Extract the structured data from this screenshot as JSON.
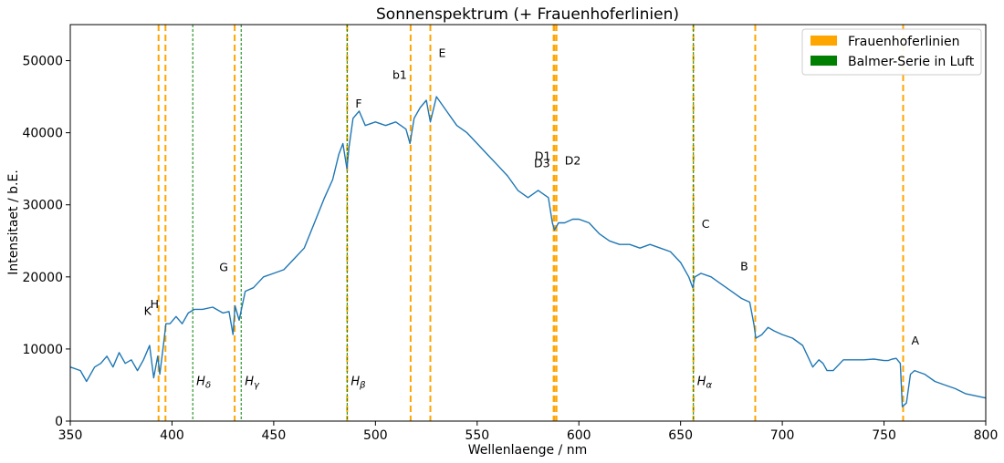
{
  "chart_data": {
    "type": "line",
    "title": "Sonnenspektrum (+ Frauenhoferlinien)",
    "xlabel": "Wellenlaenge / nm",
    "ylabel": "Intensitaet / b.E.",
    "xlim": [
      350,
      800
    ],
    "ylim": [
      0,
      55000
    ],
    "xticks": [
      350,
      400,
      450,
      500,
      550,
      600,
      650,
      700,
      750,
      800
    ],
    "yticks": [
      0,
      10000,
      20000,
      30000,
      40000,
      50000
    ],
    "grid": false,
    "legend": {
      "placement": "top-right",
      "entries": [
        {
          "label": "Frauenhoferlinien",
          "color": "#ffa500"
        },
        {
          "label": "Balmer-Serie in Luft",
          "color": "#008000"
        }
      ]
    },
    "spectrum_color": "#1f77b4",
    "spectrum": {
      "x": [
        350,
        355,
        358,
        362,
        365,
        368,
        371,
        374,
        377,
        380,
        383,
        386,
        389,
        391,
        393,
        394,
        396,
        397,
        399,
        402,
        405,
        408,
        411,
        415,
        420,
        425,
        428,
        430,
        431,
        433,
        436,
        440,
        445,
        450,
        455,
        460,
        465,
        470,
        475,
        479,
        482,
        484,
        486,
        487,
        489,
        492,
        495,
        500,
        505,
        510,
        515,
        517,
        519,
        522,
        525,
        527,
        530,
        535,
        540,
        545,
        550,
        555,
        560,
        565,
        570,
        575,
        580,
        585,
        587,
        588,
        589,
        590,
        593,
        597,
        600,
        605,
        610,
        615,
        620,
        625,
        630,
        635,
        640,
        645,
        650,
        654,
        656,
        657,
        660,
        665,
        670,
        675,
        680,
        684,
        686,
        687,
        690,
        693,
        696,
        700,
        705,
        710,
        715,
        718,
        720,
        722,
        725,
        730,
        735,
        740,
        745,
        750,
        752,
        754,
        756,
        758,
        759,
        761,
        763,
        765,
        770,
        775,
        780,
        785,
        790,
        795,
        800
      ],
      "y": [
        7500,
        7000,
        5500,
        7500,
        8000,
        9000,
        7500,
        9500,
        8000,
        8500,
        7000,
        8500,
        10500,
        6000,
        9000,
        6500,
        11000,
        13500,
        13500,
        14500,
        13500,
        15000,
        15500,
        15500,
        15800,
        15000,
        15200,
        12000,
        16000,
        14000,
        18000,
        18500,
        20000,
        20500,
        21000,
        22500,
        24000,
        27500,
        31000,
        33500,
        37000,
        38500,
        35000,
        38000,
        42000,
        43000,
        41000,
        41500,
        41000,
        41500,
        40500,
        38500,
        42000,
        43500,
        44500,
        41500,
        45000,
        43000,
        41000,
        40000,
        38500,
        37000,
        35500,
        34000,
        32000,
        31000,
        32000,
        31000,
        27500,
        26500,
        27000,
        27500,
        27500,
        28000,
        28000,
        27500,
        26000,
        25000,
        24500,
        24500,
        24000,
        24500,
        24000,
        23500,
        22000,
        20000,
        18500,
        20000,
        20500,
        20000,
        19000,
        18000,
        17000,
        16500,
        13500,
        11500,
        12000,
        13000,
        12500,
        12000,
        11500,
        10500,
        7500,
        8500,
        8000,
        7000,
        7000,
        8500,
        8500,
        8500,
        8600,
        8400,
        8400,
        8600,
        8700,
        8000,
        2000,
        2500,
        6500,
        7000,
        6500,
        5500,
        5000,
        4500,
        3800,
        3500,
        3200
      ]
    },
    "fraunhofer_lines": [
      {
        "label": "K",
        "x": 393.4,
        "label_y": 14700
      },
      {
        "label": "H",
        "x": 396.8,
        "label_y": 15700
      },
      {
        "label": "G",
        "x": 430.8,
        "label_y": 20800
      },
      {
        "label": "F",
        "x": 486.1,
        "label_y": 43500
      },
      {
        "label": "b1",
        "x": 517.3,
        "label_y": 47500
      },
      {
        "label": "E",
        "x": 527.0,
        "label_y": 50500
      },
      {
        "label": "D3",
        "x": 587.6,
        "label_y": 35200
      },
      {
        "label": "D1",
        "x": 588.0,
        "label_y": 36200
      },
      {
        "label": "D2",
        "x": 589.0,
        "label_y": 35600
      },
      {
        "label": "C",
        "x": 656.3,
        "label_y": 26800
      },
      {
        "label": "B",
        "x": 686.7,
        "label_y": 20900
      },
      {
        "label": "A",
        "x": 759.4,
        "label_y": 10600
      }
    ],
    "balmer_lines": [
      {
        "label": "δ",
        "x": 410.2
      },
      {
        "label": "γ",
        "x": 434.0
      },
      {
        "label": "β",
        "x": 486.1
      },
      {
        "label": "α",
        "x": 656.3
      }
    ],
    "balmer_label_y": 5000
  }
}
